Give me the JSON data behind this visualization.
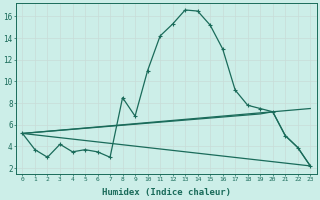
{
  "xlabel": "Humidex (Indice chaleur)",
  "bg_color": "#cceee8",
  "grid_color": "#c8dcd8",
  "line_color": "#1a6b5a",
  "xlim": [
    -0.5,
    23.5
  ],
  "ylim": [
    1.5,
    17.2
  ],
  "yticks": [
    2,
    4,
    6,
    8,
    10,
    12,
    14,
    16
  ],
  "xticks": [
    0,
    1,
    2,
    3,
    4,
    5,
    6,
    7,
    8,
    9,
    10,
    11,
    12,
    13,
    14,
    15,
    16,
    17,
    18,
    19,
    20,
    21,
    22,
    23
  ],
  "series_main": [
    [
      0,
      5.2
    ],
    [
      1,
      3.7
    ],
    [
      2,
      3.0
    ],
    [
      3,
      4.2
    ],
    [
      4,
      3.5
    ],
    [
      5,
      3.7
    ],
    [
      6,
      3.5
    ],
    [
      7,
      3.0
    ],
    [
      8,
      8.5
    ],
    [
      9,
      6.8
    ],
    [
      10,
      11.0
    ],
    [
      11,
      14.2
    ],
    [
      12,
      15.3
    ],
    [
      13,
      16.6
    ],
    [
      14,
      16.5
    ],
    [
      15,
      15.2
    ],
    [
      16,
      13.0
    ],
    [
      17,
      9.2
    ],
    [
      18,
      7.8
    ],
    [
      19,
      7.5
    ],
    [
      20,
      7.2
    ],
    [
      21,
      5.0
    ],
    [
      22,
      3.9
    ],
    [
      23,
      2.2
    ]
  ],
  "series_high": [
    [
      0,
      5.2
    ],
    [
      23,
      7.5
    ]
  ],
  "series_mid": [
    [
      0,
      5.2
    ],
    [
      19,
      7.0
    ],
    [
      20,
      7.2
    ],
    [
      21,
      5.0
    ],
    [
      22,
      3.9
    ],
    [
      23,
      2.2
    ]
  ],
  "series_low": [
    [
      0,
      5.2
    ],
    [
      23,
      2.2
    ]
  ]
}
